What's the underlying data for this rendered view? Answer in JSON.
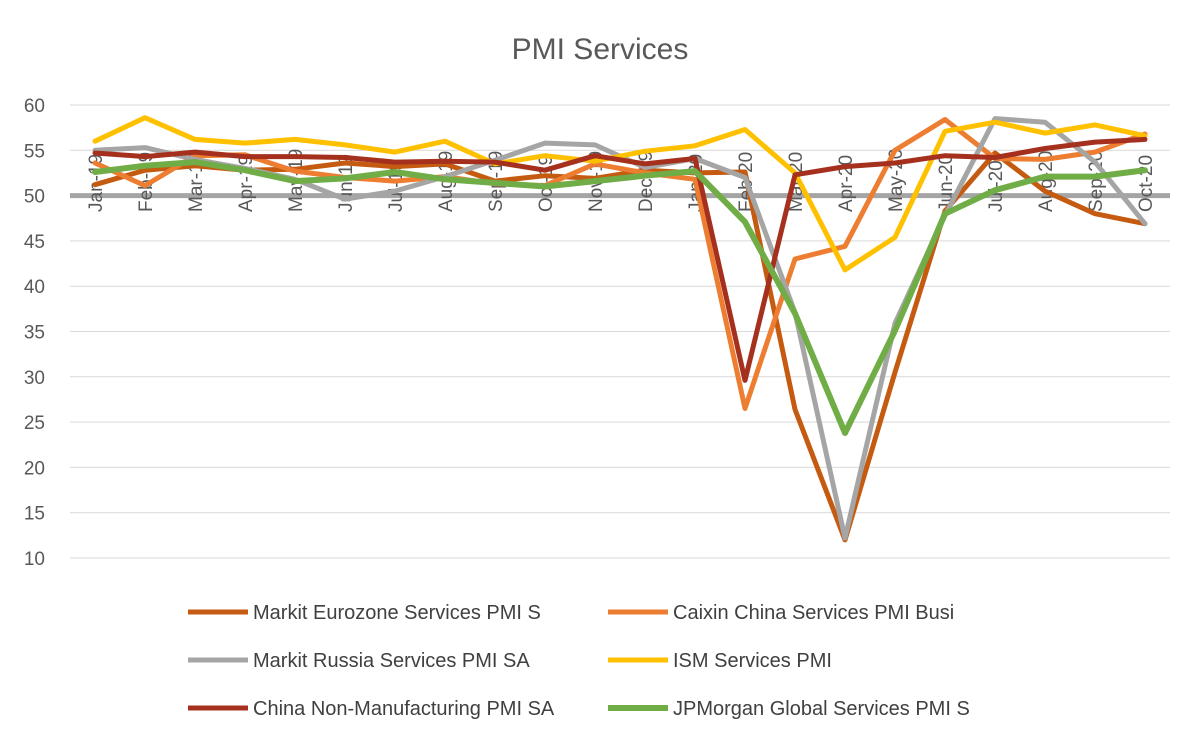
{
  "chart_data": {
    "type": "line",
    "title": "PMI Services",
    "xlabel": "",
    "ylabel": "",
    "categories": [
      "Jan-19",
      "Feb-19",
      "Mar-19",
      "Apr-19",
      "May-19",
      "Jun-19",
      "Jul-19",
      "Aug-19",
      "Sep-19",
      "Oct-19",
      "Nov-19",
      "Dec-19",
      "Jan-20",
      "Feb-20",
      "Mar-20",
      "Apr-20",
      "May-20",
      "Jun-20",
      "Jul-20",
      "Aug-20",
      "Sep-20",
      "Oct-20"
    ],
    "ylim": [
      10,
      60
    ],
    "yticks": [
      10,
      15,
      20,
      25,
      30,
      35,
      40,
      45,
      50,
      55,
      60
    ],
    "reference_line": 50,
    "grid": true,
    "legend_position": "bottom",
    "series": [
      {
        "name": "Markit Eurozone Services PMI S",
        "color": "#C55A11",
        "width": 5,
        "values": [
          51.2,
          52.8,
          53.3,
          52.8,
          52.9,
          53.6,
          53.2,
          53.5,
          51.6,
          52.2,
          51.9,
          52.8,
          52.5,
          52.6,
          26.4,
          12.0,
          30.5,
          48.3,
          54.7,
          50.5,
          48.0,
          46.9
        ]
      },
      {
        "name": "Caixin China Services PMI Busi",
        "color": "#ED7D31",
        "width": 5,
        "values": [
          53.6,
          51.1,
          54.4,
          54.5,
          52.7,
          52.0,
          51.6,
          52.1,
          51.3,
          51.1,
          53.5,
          52.5,
          51.8,
          26.5,
          43.0,
          44.4,
          55.0,
          58.4,
          54.1,
          54.0,
          54.8,
          56.8
        ]
      },
      {
        "name": "Markit Russia Services PMI SA",
        "color": "#A5A5A5",
        "width": 5,
        "values": [
          55.0,
          55.3,
          54.0,
          53.0,
          51.8,
          49.6,
          50.5,
          52.1,
          53.9,
          55.8,
          55.6,
          53.1,
          54.1,
          52.0,
          37.1,
          12.2,
          35.9,
          47.8,
          58.5,
          58.1,
          53.7,
          46.9
        ]
      },
      {
        "name": "ISM Services PMI",
        "color": "#FFC000",
        "width": 5,
        "values": [
          56.0,
          58.6,
          56.2,
          55.8,
          56.2,
          55.6,
          54.8,
          56.0,
          53.5,
          54.4,
          53.8,
          54.9,
          55.5,
          57.3,
          52.5,
          41.8,
          45.4,
          57.1,
          58.1,
          56.9,
          57.8,
          56.6
        ]
      },
      {
        "name": "China Non-Manufacturing PMI SA",
        "color": "#A5301E",
        "width": 5,
        "values": [
          54.7,
          54.3,
          54.8,
          54.3,
          54.3,
          54.2,
          53.7,
          53.8,
          53.7,
          52.8,
          54.4,
          53.5,
          54.1,
          29.6,
          52.3,
          53.2,
          53.6,
          54.4,
          54.2,
          55.2,
          55.9,
          56.2
        ]
      },
      {
        "name": "JPMorgan Global Services PMI S",
        "color": "#70AD47",
        "width": 6,
        "values": [
          52.6,
          53.3,
          53.7,
          52.8,
          51.6,
          51.9,
          52.6,
          51.8,
          51.4,
          51.0,
          51.6,
          52.2,
          52.7,
          47.1,
          37.0,
          23.8,
          35.1,
          48.0,
          50.6,
          52.1,
          52.1,
          52.8
        ]
      }
    ]
  }
}
